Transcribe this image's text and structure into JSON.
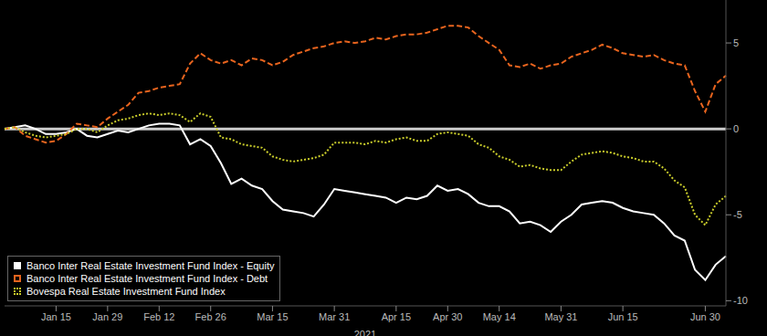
{
  "chart_data": {
    "type": "line",
    "xlabel": "2021",
    "categories": [
      null,
      null,
      null,
      null,
      null,
      "Jan 15",
      null,
      null,
      null,
      null,
      "Jan 29",
      null,
      null,
      null,
      null,
      "Feb 12",
      null,
      null,
      null,
      null,
      "Feb 26",
      null,
      null,
      null,
      null,
      null,
      "Mar 15",
      null,
      null,
      null,
      null,
      null,
      "Mar 31",
      null,
      null,
      null,
      null,
      null,
      "Apr 15",
      null,
      null,
      null,
      null,
      "Apr 30",
      null,
      null,
      null,
      null,
      "May 14",
      null,
      null,
      null,
      null,
      null,
      "May 31",
      null,
      null,
      null,
      null,
      null,
      "Jun 15",
      null,
      null,
      null,
      null,
      null,
      null,
      null,
      "Jun 30",
      null,
      null
    ],
    "series": [
      {
        "name": "Banco Inter Real Estate Investment Fund Index - Equity",
        "color": "#ffffff",
        "line_style": "solid",
        "values": [
          0,
          0.1,
          0.2,
          0,
          -0.3,
          -0.3,
          -0.2,
          0,
          -0.4,
          -0.5,
          -0.3,
          -0.1,
          -0.2,
          0,
          0.2,
          0.3,
          0.3,
          0.2,
          -0.9,
          -0.6,
          -1.0,
          -2.0,
          -3.2,
          -2.9,
          -3.3,
          -3.5,
          -4.2,
          -4.7,
          -4.8,
          -4.9,
          -5.1,
          -4.4,
          -3.5,
          -3.6,
          -3.7,
          -3.8,
          -3.9,
          -4.0,
          -4.3,
          -4.0,
          -4.1,
          -3.9,
          -3.3,
          -3.6,
          -3.5,
          -3.8,
          -4.3,
          -4.5,
          -4.5,
          -4.8,
          -5.5,
          -5.4,
          -5.6,
          -6.0,
          -5.4,
          -5.0,
          -4.4,
          -4.3,
          -4.2,
          -4.3,
          -4.6,
          -4.8,
          -4.9,
          -5.0,
          -5.5,
          -6.2,
          -6.5,
          -8.2,
          -8.8,
          -7.9,
          -7.4
        ]
      },
      {
        "name": "Banco Inter Real Estate Investment Fund Index - Debt",
        "color": "#e8641e",
        "line_style": "dashed",
        "values": [
          0,
          0.1,
          -0.4,
          -0.6,
          -0.8,
          -0.7,
          -0.3,
          0.3,
          0.2,
          0.1,
          0.6,
          1.0,
          1.4,
          2.1,
          2.2,
          2.4,
          2.5,
          2.6,
          3.8,
          4.4,
          4.0,
          3.8,
          4.0,
          3.7,
          4.1,
          4.0,
          3.7,
          3.9,
          4.3,
          4.5,
          4.7,
          4.8,
          5.0,
          5.1,
          5.0,
          5.1,
          5.3,
          5.2,
          5.4,
          5.5,
          5.5,
          5.6,
          5.8,
          6.0,
          6.0,
          5.9,
          5.4,
          5.0,
          4.6,
          3.7,
          3.6,
          3.8,
          3.5,
          3.7,
          3.8,
          4.2,
          4.4,
          4.6,
          4.9,
          4.7,
          4.4,
          4.3,
          4.2,
          4.3,
          4.0,
          3.8,
          3.7,
          2.2,
          1.0,
          2.6,
          3.1
        ]
      },
      {
        "name": "Bovespa Real Estate Investment Fund Index",
        "color": "#c9cc2b",
        "line_style": "dotted",
        "values": [
          0,
          0.1,
          -0.2,
          -0.4,
          -0.5,
          -0.4,
          -0.3,
          0,
          0,
          -0.2,
          0.2,
          0.5,
          0.6,
          0.8,
          0.9,
          0.8,
          0.9,
          0.8,
          0.4,
          0.9,
          0.7,
          -0.5,
          -0.6,
          -0.9,
          -1.0,
          -1.1,
          -1.6,
          -1.8,
          -1.9,
          -1.8,
          -1.7,
          -1.5,
          -0.8,
          -0.8,
          -0.8,
          -0.9,
          -0.7,
          -0.8,
          -0.6,
          -0.5,
          -0.7,
          -0.7,
          -0.3,
          -0.2,
          -0.3,
          -0.4,
          -0.9,
          -1.1,
          -1.6,
          -1.8,
          -2.2,
          -2.1,
          -2.3,
          -2.4,
          -2.4,
          -1.9,
          -1.5,
          -1.4,
          -1.3,
          -1.4,
          -1.6,
          -1.7,
          -1.9,
          -1.9,
          -2.3,
          -3.0,
          -3.4,
          -5.0,
          -5.6,
          -4.4,
          -3.9
        ]
      }
    ],
    "ylim": [
      -10.3,
      7.5
    ],
    "yticks": [
      -10,
      -5,
      0,
      5
    ],
    "grid": false,
    "legend": "bottom-left"
  }
}
